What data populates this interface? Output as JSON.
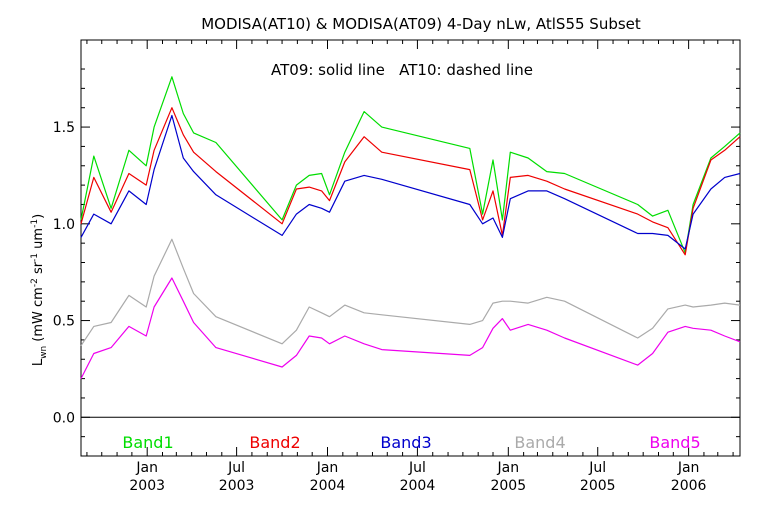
{
  "chart_data": {
    "type": "line",
    "title": "MODISA(AT10) & MODISA(AT09) 4-Day nLw, AtlS55 Subset",
    "annotation": "AT09: solid line   AT10: dashed line",
    "ylabel": "L_wn (mW cm^-2 sr^-1 um^-1)",
    "ylabel_main": "L",
    "ylabel_sub": "wn",
    "ylabel_units": " (mW cm",
    "ylabel_sup1": "-2",
    "ylabel_mid": " sr",
    "ylabel_sup2": "-1",
    "ylabel_end": " um",
    "ylabel_sup3": "-1",
    "ylabel_close": ")",
    "xlim": [
      "2002-08-20",
      "2006-04-15"
    ],
    "ylim": [
      -0.2,
      1.95
    ],
    "yticks": [
      "0.0",
      "0.5",
      "1.0",
      "1.5"
    ],
    "xticks": [
      {
        "date": "2003-01-01",
        "line1": "Jan",
        "line2": "2003"
      },
      {
        "date": "2003-07-01",
        "line1": "Jul",
        "line2": "2003"
      },
      {
        "date": "2004-01-01",
        "line1": "Jan",
        "line2": "2004"
      },
      {
        "date": "2004-07-01",
        "line1": "Jul",
        "line2": "2004"
      },
      {
        "date": "2005-01-01",
        "line1": "Jan",
        "line2": "2005"
      },
      {
        "date": "2005-07-01",
        "line1": "Jul",
        "line2": "2005"
      },
      {
        "date": "2006-01-01",
        "line1": "Jan",
        "line2": "2006"
      }
    ],
    "reference_line_y": 0.0,
    "grid": false,
    "legend_placement": "bottom",
    "series": [
      {
        "name": "Band1",
        "color": "#00dd00",
        "points": [
          [
            "2002-08-20",
            1.02
          ],
          [
            "2002-09-15",
            1.35
          ],
          [
            "2002-10-20",
            1.08
          ],
          [
            "2002-11-25",
            1.38
          ],
          [
            "2002-12-30",
            1.3
          ],
          [
            "2003-01-15",
            1.5
          ],
          [
            "2003-02-20",
            1.76
          ],
          [
            "2003-03-15",
            1.57
          ],
          [
            "2003-04-05",
            1.47
          ],
          [
            "2003-05-20",
            1.42
          ],
          [
            "2003-10-01",
            1.02
          ],
          [
            "2003-10-30",
            1.2
          ],
          [
            "2003-11-25",
            1.25
          ],
          [
            "2003-12-20",
            1.26
          ],
          [
            "2004-01-05",
            1.15
          ],
          [
            "2004-02-05",
            1.37
          ],
          [
            "2004-03-15",
            1.58
          ],
          [
            "2004-04-20",
            1.5
          ],
          [
            "2004-10-15",
            1.39
          ],
          [
            "2004-11-10",
            1.05
          ],
          [
            "2004-12-01",
            1.33
          ],
          [
            "2004-12-20",
            1.02
          ],
          [
            "2005-01-05",
            1.37
          ],
          [
            "2005-02-10",
            1.34
          ],
          [
            "2005-03-20",
            1.27
          ],
          [
            "2005-04-25",
            1.26
          ],
          [
            "2005-09-20",
            1.1
          ],
          [
            "2005-10-20",
            1.04
          ],
          [
            "2005-11-20",
            1.07
          ],
          [
            "2005-12-25",
            0.85
          ],
          [
            "2006-01-10",
            1.1
          ],
          [
            "2006-02-15",
            1.34
          ],
          [
            "2006-03-15",
            1.4
          ],
          [
            "2006-04-15",
            1.47
          ]
        ]
      },
      {
        "name": "Band2",
        "color": "#ee0000",
        "points": [
          [
            "2002-08-20",
            1.0
          ],
          [
            "2002-09-15",
            1.24
          ],
          [
            "2002-10-20",
            1.06
          ],
          [
            "2002-11-25",
            1.26
          ],
          [
            "2002-12-30",
            1.2
          ],
          [
            "2003-01-15",
            1.38
          ],
          [
            "2003-02-20",
            1.6
          ],
          [
            "2003-03-15",
            1.46
          ],
          [
            "2003-04-05",
            1.37
          ],
          [
            "2003-05-20",
            1.27
          ],
          [
            "2003-10-01",
            1.0
          ],
          [
            "2003-10-30",
            1.18
          ],
          [
            "2003-11-25",
            1.19
          ],
          [
            "2003-12-20",
            1.17
          ],
          [
            "2004-01-05",
            1.12
          ],
          [
            "2004-02-05",
            1.32
          ],
          [
            "2004-03-15",
            1.45
          ],
          [
            "2004-04-20",
            1.37
          ],
          [
            "2004-10-15",
            1.28
          ],
          [
            "2004-11-10",
            1.02
          ],
          [
            "2004-12-01",
            1.17
          ],
          [
            "2004-12-20",
            0.94
          ],
          [
            "2005-01-05",
            1.24
          ],
          [
            "2005-02-10",
            1.25
          ],
          [
            "2005-03-20",
            1.22
          ],
          [
            "2005-04-25",
            1.18
          ],
          [
            "2005-09-20",
            1.05
          ],
          [
            "2005-10-20",
            1.01
          ],
          [
            "2005-11-20",
            0.98
          ],
          [
            "2005-12-25",
            0.84
          ],
          [
            "2006-01-10",
            1.08
          ],
          [
            "2006-02-15",
            1.33
          ],
          [
            "2006-03-15",
            1.38
          ],
          [
            "2006-04-15",
            1.45
          ]
        ]
      },
      {
        "name": "Band3",
        "color": "#0000cc",
        "points": [
          [
            "2002-08-20",
            0.93
          ],
          [
            "2002-09-15",
            1.05
          ],
          [
            "2002-10-20",
            1.0
          ],
          [
            "2002-11-25",
            1.17
          ],
          [
            "2002-12-30",
            1.1
          ],
          [
            "2003-01-15",
            1.28
          ],
          [
            "2003-02-20",
            1.56
          ],
          [
            "2003-03-15",
            1.34
          ],
          [
            "2003-04-05",
            1.27
          ],
          [
            "2003-05-20",
            1.15
          ],
          [
            "2003-10-01",
            0.94
          ],
          [
            "2003-10-30",
            1.05
          ],
          [
            "2003-11-25",
            1.1
          ],
          [
            "2003-12-20",
            1.08
          ],
          [
            "2004-01-05",
            1.06
          ],
          [
            "2004-02-05",
            1.22
          ],
          [
            "2004-03-15",
            1.25
          ],
          [
            "2004-04-20",
            1.23
          ],
          [
            "2004-10-15",
            1.1
          ],
          [
            "2004-11-10",
            1.0
          ],
          [
            "2004-12-01",
            1.03
          ],
          [
            "2004-12-20",
            0.93
          ],
          [
            "2005-01-05",
            1.13
          ],
          [
            "2005-02-10",
            1.17
          ],
          [
            "2005-03-20",
            1.17
          ],
          [
            "2005-04-25",
            1.13
          ],
          [
            "2005-09-20",
            0.95
          ],
          [
            "2005-10-20",
            0.95
          ],
          [
            "2005-11-20",
            0.94
          ],
          [
            "2005-12-25",
            0.87
          ],
          [
            "2006-01-10",
            1.05
          ],
          [
            "2006-02-15",
            1.18
          ],
          [
            "2006-03-15",
            1.24
          ],
          [
            "2006-04-15",
            1.26
          ]
        ]
      },
      {
        "name": "Band4",
        "color": "#aaaaaa",
        "points": [
          [
            "2002-08-20",
            0.37
          ],
          [
            "2002-09-15",
            0.47
          ],
          [
            "2002-10-20",
            0.49
          ],
          [
            "2002-11-25",
            0.63
          ],
          [
            "2002-12-30",
            0.57
          ],
          [
            "2003-01-15",
            0.73
          ],
          [
            "2003-02-20",
            0.92
          ],
          [
            "2003-03-15",
            0.77
          ],
          [
            "2003-04-05",
            0.64
          ],
          [
            "2003-05-20",
            0.52
          ],
          [
            "2003-10-01",
            0.38
          ],
          [
            "2003-10-30",
            0.45
          ],
          [
            "2003-11-25",
            0.57
          ],
          [
            "2003-12-20",
            0.54
          ],
          [
            "2004-01-05",
            0.52
          ],
          [
            "2004-02-05",
            0.58
          ],
          [
            "2004-03-15",
            0.54
          ],
          [
            "2004-04-20",
            0.53
          ],
          [
            "2004-10-15",
            0.48
          ],
          [
            "2004-11-10",
            0.5
          ],
          [
            "2004-12-01",
            0.59
          ],
          [
            "2004-12-20",
            0.6
          ],
          [
            "2005-01-05",
            0.6
          ],
          [
            "2005-02-10",
            0.59
          ],
          [
            "2005-03-20",
            0.62
          ],
          [
            "2005-04-25",
            0.6
          ],
          [
            "2005-09-20",
            0.41
          ],
          [
            "2005-10-20",
            0.46
          ],
          [
            "2005-11-20",
            0.56
          ],
          [
            "2005-12-25",
            0.58
          ],
          [
            "2006-01-10",
            0.57
          ],
          [
            "2006-02-15",
            0.58
          ],
          [
            "2006-03-15",
            0.59
          ],
          [
            "2006-04-15",
            0.58
          ]
        ]
      },
      {
        "name": "Band5",
        "color": "#ee00ee",
        "points": [
          [
            "2002-08-20",
            0.2
          ],
          [
            "2002-09-15",
            0.33
          ],
          [
            "2002-10-20",
            0.36
          ],
          [
            "2002-11-25",
            0.47
          ],
          [
            "2002-12-30",
            0.42
          ],
          [
            "2003-01-15",
            0.57
          ],
          [
            "2003-02-20",
            0.72
          ],
          [
            "2003-03-15",
            0.6
          ],
          [
            "2003-04-05",
            0.49
          ],
          [
            "2003-05-20",
            0.36
          ],
          [
            "2003-10-01",
            0.26
          ],
          [
            "2003-10-30",
            0.32
          ],
          [
            "2003-11-25",
            0.42
          ],
          [
            "2003-12-20",
            0.41
          ],
          [
            "2004-01-05",
            0.38
          ],
          [
            "2004-02-05",
            0.42
          ],
          [
            "2004-03-15",
            0.38
          ],
          [
            "2004-04-20",
            0.35
          ],
          [
            "2004-10-15",
            0.32
          ],
          [
            "2004-11-10",
            0.36
          ],
          [
            "2004-12-01",
            0.46
          ],
          [
            "2004-12-20",
            0.51
          ],
          [
            "2005-01-05",
            0.45
          ],
          [
            "2005-02-10",
            0.48
          ],
          [
            "2005-03-20",
            0.45
          ],
          [
            "2005-04-25",
            0.41
          ],
          [
            "2005-09-20",
            0.27
          ],
          [
            "2005-10-20",
            0.33
          ],
          [
            "2005-11-20",
            0.44
          ],
          [
            "2005-12-25",
            0.47
          ],
          [
            "2006-01-10",
            0.46
          ],
          [
            "2006-02-15",
            0.45
          ],
          [
            "2006-03-15",
            0.42
          ],
          [
            "2006-04-15",
            0.39
          ]
        ]
      }
    ]
  }
}
